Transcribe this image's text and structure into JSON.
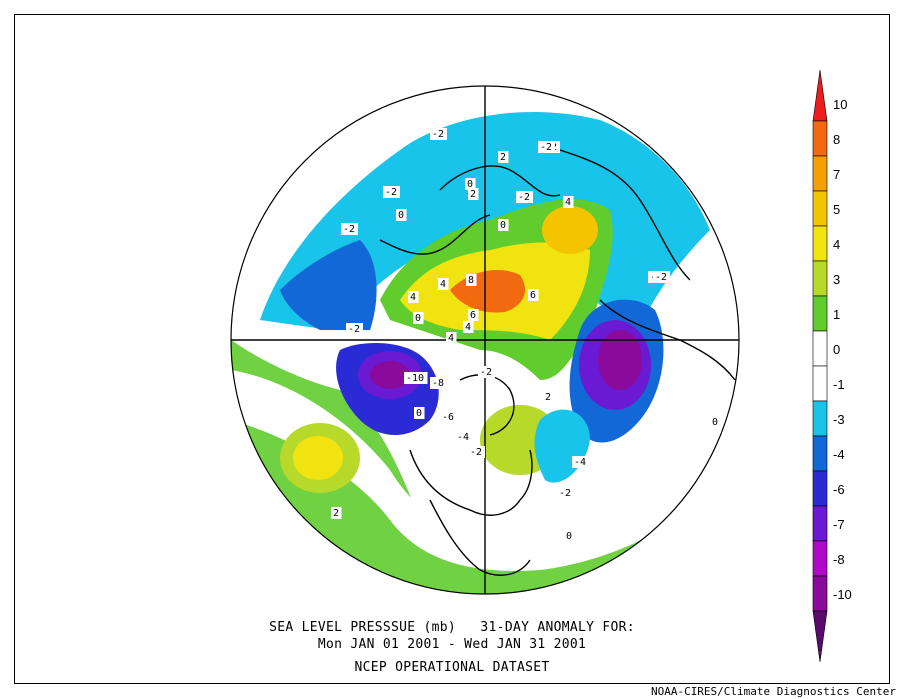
{
  "figure": {
    "title_line1": "SEA LEVEL PRESSSUE (mb)   31-DAY ANOMALY FOR:",
    "title_line2": "Mon JAN 01 2001 - Wed JAN 31 2001",
    "dataset": "NCEP OPERATIONAL DATASET",
    "credit": "NOAA-CIRES/Climate Diagnostics Center"
  },
  "colorbar": {
    "ticks": [
      "10",
      "8",
      "7",
      "5",
      "4",
      "3",
      "1",
      "0",
      "-1",
      "-3",
      "-4",
      "-6",
      "-7",
      "-8",
      "-10"
    ],
    "colors": [
      "#ee1c1c",
      "#f26a10",
      "#f5a000",
      "#f5c400",
      "#f1e310",
      "#b7d92a",
      "#60cc2d",
      "#ffffff",
      "#ffffff",
      "#18c4ea",
      "#1268d6",
      "#2b2bd6",
      "#6a1ad2",
      "#b00ac6",
      "#8a0a9c",
      "#5a0a6a"
    ]
  },
  "contour_labels": [
    "-2",
    "-2",
    "-2",
    "0",
    "-2",
    "-2",
    "0",
    "-2",
    "4",
    "4",
    "2",
    "2",
    "4",
    "6",
    "8",
    "6",
    "4",
    "4",
    "-2",
    "0",
    "-2",
    "-10",
    "-8",
    "-6",
    "-4",
    "0",
    "-2",
    "-4",
    "-2",
    "0",
    "2",
    "-2",
    "0",
    "-2",
    "0",
    "2"
  ],
  "colors": {
    "land_outline": "#000000",
    "background": "#ffffff"
  }
}
